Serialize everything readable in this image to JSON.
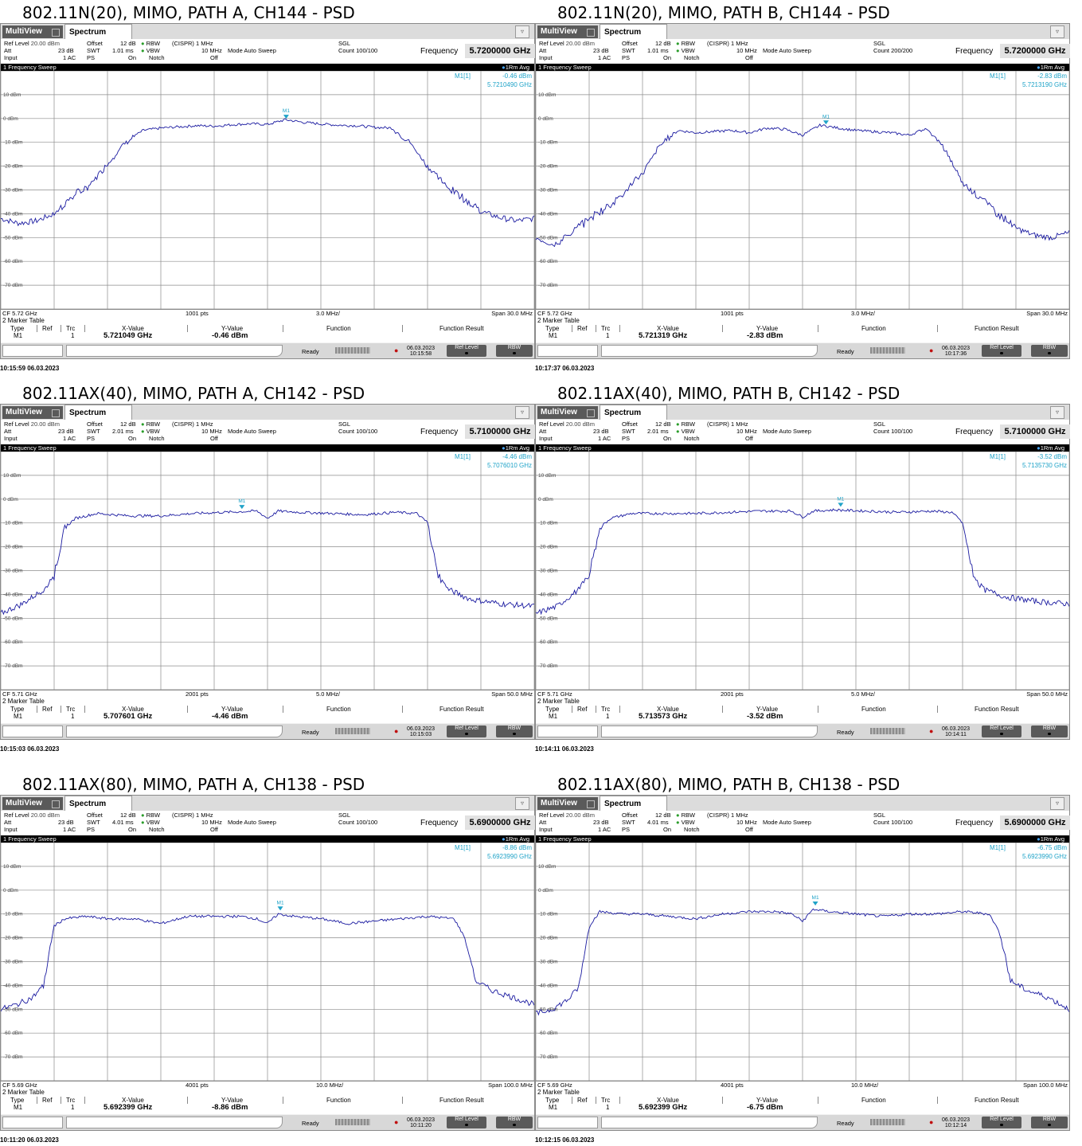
{
  "panels": [
    {
      "title": "802.11N(20), MIMO, PATH A, CH144 - PSD",
      "tabs": {
        "multiview": "MultiView",
        "spectrum": "Spectrum"
      },
      "params": {
        "ref_level": "20.00 dBm",
        "att": "23 dB",
        "input": "1 AC",
        "offset": "12 dB",
        "swt": "1.01 ms",
        "ps": "On",
        "rbw": "(CISPR) 1 MHz",
        "vbw": "10 MHz",
        "notch": "Off",
        "mode": "Mode Auto Sweep",
        "sgl": "SGL",
        "count": "Count 100/100",
        "frequency_label": "Frequency",
        "frequency": "5.7200000 GHz"
      },
      "sweep": {
        "label": "1 Frequency Sweep",
        "trace": "1Rm Avg"
      },
      "marker_readout": {
        "name": "M1[1]",
        "level": "-0.46 dBm",
        "freq": "5.7210490 GHz"
      },
      "bottom": {
        "cf": "CF 5.72 GHz",
        "pts": "1001 pts",
        "div": "3.0 MHz/",
        "span": "Span 30.0 MHz"
      },
      "marker_table": {
        "caption": "2 Marker Table",
        "headers": [
          "Type",
          "Ref",
          "Trc",
          "X-Value",
          "Y-Value",
          "Function",
          "Function Result"
        ],
        "row": {
          "type": "M1",
          "ref": "",
          "trc": "1",
          "x": "5.721049 GHz",
          "y": "-0.46 dBm"
        }
      },
      "status": {
        "ready": "Ready",
        "date": "06.03.2023",
        "time": "10:15:58",
        "btn1": "Ref Level",
        "btn2": "RBW"
      },
      "timestamp": "10:15:59  06.03.2023"
    },
    {
      "title": "802.11N(20), MIMO, PATH B, CH144 - PSD",
      "tabs": {
        "multiview": "MultiView",
        "spectrum": "Spectrum"
      },
      "params": {
        "ref_level": "20.00 dBm",
        "att": "23 dB",
        "input": "1 AC",
        "offset": "12 dB",
        "swt": "1.01 ms",
        "ps": "On",
        "rbw": "(CISPR) 1 MHz",
        "vbw": "10 MHz",
        "notch": "Off",
        "mode": "Mode Auto Sweep",
        "sgl": "SGL",
        "count": "Count 200/200",
        "frequency_label": "Frequency",
        "frequency": "5.7200000 GHz"
      },
      "sweep": {
        "label": "1 Frequency Sweep",
        "trace": "1Rm Avg"
      },
      "marker_readout": {
        "name": "M1[1]",
        "level": "-2.83 dBm",
        "freq": "5.7213190 GHz"
      },
      "bottom": {
        "cf": "CF 5.72 GHz",
        "pts": "1001 pts",
        "div": "3.0 MHz/",
        "span": "Span 30.0 MHz"
      },
      "marker_table": {
        "caption": "2 Marker Table",
        "headers": [
          "Type",
          "Ref",
          "Trc",
          "X-Value",
          "Y-Value",
          "Function",
          "Function Result"
        ],
        "row": {
          "type": "M1",
          "ref": "",
          "trc": "1",
          "x": "5.721319 GHz",
          "y": "-2.83 dBm"
        }
      },
      "status": {
        "ready": "Ready",
        "date": "06.03.2023",
        "time": "10:17:36",
        "btn1": "Ref Level",
        "btn2": "RBW"
      },
      "timestamp": "10:17:37  06.03.2023"
    },
    {
      "title": "802.11AX(40), MIMO, PATH A, CH142 - PSD",
      "tabs": {
        "multiview": "MultiView",
        "spectrum": "Spectrum"
      },
      "params": {
        "ref_level": "20.00 dBm",
        "att": "23 dB",
        "input": "1 AC",
        "offset": "12 dB",
        "swt": "2.01 ms",
        "ps": "On",
        "rbw": "(CISPR) 1 MHz",
        "vbw": "10 MHz",
        "notch": "Off",
        "mode": "Mode Auto Sweep",
        "sgl": "SGL",
        "count": "Count 100/100",
        "frequency_label": "Frequency",
        "frequency": "5.7100000 GHz"
      },
      "sweep": {
        "label": "1 Frequency Sweep",
        "trace": "1Rm Avg"
      },
      "marker_readout": {
        "name": "M1[1]",
        "level": "-4.46 dBm",
        "freq": "5.7076010 GHz"
      },
      "bottom": {
        "cf": "CF 5.71 GHz",
        "pts": "2001 pts",
        "div": "5.0 MHz/",
        "span": "Span 50.0 MHz"
      },
      "marker_table": {
        "caption": "2 Marker Table",
        "headers": [
          "Type",
          "Ref",
          "Trc",
          "X-Value",
          "Y-Value",
          "Function",
          "Function Result"
        ],
        "row": {
          "type": "M1",
          "ref": "",
          "trc": "1",
          "x": "5.707601 GHz",
          "y": "-4.46 dBm"
        }
      },
      "status": {
        "ready": "Ready",
        "date": "06.03.2023",
        "time": "10:15:03",
        "btn1": "Ref Level",
        "btn2": "RBW"
      },
      "timestamp": "10:15:03  06.03.2023"
    },
    {
      "title": "802.11AX(40), MIMO, PATH B, CH142 - PSD",
      "tabs": {
        "multiview": "MultiView",
        "spectrum": "Spectrum"
      },
      "params": {
        "ref_level": "20.00 dBm",
        "att": "23 dB",
        "input": "1 AC",
        "offset": "12 dB",
        "swt": "2.01 ms",
        "ps": "On",
        "rbw": "(CISPR) 1 MHz",
        "vbw": "10 MHz",
        "notch": "Off",
        "mode": "Mode Auto Sweep",
        "sgl": "SGL",
        "count": "Count 100/100",
        "frequency_label": "Frequency",
        "frequency": "5.7100000 GHz"
      },
      "sweep": {
        "label": "1 Frequency Sweep",
        "trace": "1Rm Avg"
      },
      "marker_readout": {
        "name": "M1[1]",
        "level": "-3.52 dBm",
        "freq": "5.7135730 GHz"
      },
      "bottom": {
        "cf": "CF 5.71 GHz",
        "pts": "2001 pts",
        "div": "5.0 MHz/",
        "span": "Span 50.0 MHz"
      },
      "marker_table": {
        "caption": "2 Marker Table",
        "headers": [
          "Type",
          "Ref",
          "Trc",
          "X-Value",
          "Y-Value",
          "Function",
          "Function Result"
        ],
        "row": {
          "type": "M1",
          "ref": "",
          "trc": "1",
          "x": "5.713573 GHz",
          "y": "-3.52 dBm"
        }
      },
      "status": {
        "ready": "Ready",
        "date": "06.03.2023",
        "time": "10:14:11",
        "btn1": "Ref Level",
        "btn2": "RBW"
      },
      "timestamp": "10:14:11  06.03.2023"
    },
    {
      "title": "802.11AX(80), MIMO, PATH A, CH138 - PSD",
      "tabs": {
        "multiview": "MultiView",
        "spectrum": "Spectrum"
      },
      "params": {
        "ref_level": "20.00 dBm",
        "att": "23 dB",
        "input": "1 AC",
        "offset": "12 dB",
        "swt": "4.01 ms",
        "ps": "On",
        "rbw": "(CISPR) 1 MHz",
        "vbw": "10 MHz",
        "notch": "Off",
        "mode": "Mode Auto Sweep",
        "sgl": "SGL",
        "count": "Count 100/100",
        "frequency_label": "Frequency",
        "frequency": "5.6900000 GHz"
      },
      "sweep": {
        "label": "1 Frequency Sweep",
        "trace": "1Rm Avg"
      },
      "marker_readout": {
        "name": "M1[1]",
        "level": "-8.86 dBm",
        "freq": "5.6923990 GHz"
      },
      "bottom": {
        "cf": "CF 5.69 GHz",
        "pts": "4001 pts",
        "div": "10.0 MHz/",
        "span": "Span 100.0 MHz"
      },
      "marker_table": {
        "caption": "2 Marker Table",
        "headers": [
          "Type",
          "Ref",
          "Trc",
          "X-Value",
          "Y-Value",
          "Function",
          "Function Result"
        ],
        "row": {
          "type": "M1",
          "ref": "",
          "trc": "1",
          "x": "5.692399 GHz",
          "y": "-8.86 dBm"
        }
      },
      "status": {
        "ready": "Ready",
        "date": "06.03.2023",
        "time": "10:11:20",
        "btn1": "Ref Level",
        "btn2": "RBW"
      },
      "timestamp": "10:11:20  06.03.2023"
    },
    {
      "title": "802.11AX(80), MIMO, PATH B, CH138 - PSD",
      "tabs": {
        "multiview": "MultiView",
        "spectrum": "Spectrum"
      },
      "params": {
        "ref_level": "20.00 dBm",
        "att": "23 dB",
        "input": "1 AC",
        "offset": "12 dB",
        "swt": "4.01 ms",
        "ps": "On",
        "rbw": "(CISPR) 1 MHz",
        "vbw": "10 MHz",
        "notch": "Off",
        "mode": "Mode Auto Sweep",
        "sgl": "SGL",
        "count": "Count 100/100",
        "frequency_label": "Frequency",
        "frequency": "5.6900000 GHz"
      },
      "sweep": {
        "label": "1 Frequency Sweep",
        "trace": "1Rm Avg"
      },
      "marker_readout": {
        "name": "M1[1]",
        "level": "-6.75 dBm",
        "freq": "5.6923990 GHz"
      },
      "bottom": {
        "cf": "CF 5.69 GHz",
        "pts": "4001 pts",
        "div": "10.0 MHz/",
        "span": "Span 100.0 MHz"
      },
      "marker_table": {
        "caption": "2 Marker Table",
        "headers": [
          "Type",
          "Ref",
          "Trc",
          "X-Value",
          "Y-Value",
          "Function",
          "Function Result"
        ],
        "row": {
          "type": "M1",
          "ref": "",
          "trc": "1",
          "x": "5.692399 GHz",
          "y": "-6.75 dBm"
        }
      },
      "status": {
        "ready": "Ready",
        "date": "06.03.2023",
        "time": "10:12:14",
        "btn1": "Ref Level",
        "btn2": "RBW"
      },
      "timestamp": "10:12:15  06.03.2023"
    }
  ],
  "colors": {
    "trace": "#1a1aa0",
    "marker": "#1fa3c8",
    "grid": "#8c8c8c",
    "readout": "#1fa3c8"
  },
  "chart_data": [
    {
      "type": "line",
      "ylabel": "dBm",
      "ylim": [
        -80,
        20
      ],
      "yticks": [
        "10 dBm",
        "0 dBm",
        "-10 dBm",
        "-20 dBm",
        "-30 dBm",
        "-40 dBm",
        "-50 dBm",
        "-60 dBm",
        "-70 dBm"
      ],
      "xlim_mhz": [
        5705,
        5735
      ],
      "series": [
        {
          "x": [
            5705,
            5706,
            5707,
            5708,
            5709,
            5710,
            5711,
            5712,
            5713,
            5714,
            5715,
            5716,
            5717,
            5718,
            5719,
            5720,
            5721,
            5722,
            5723,
            5724,
            5725,
            5726,
            5727,
            5728,
            5729,
            5730,
            5731,
            5732,
            5733,
            5734,
            5735
          ],
          "values": [
            -42,
            -44,
            -43,
            -40,
            -33,
            -28,
            -19,
            -10,
            -5,
            -4,
            -3.5,
            -3,
            -3.2,
            -2.6,
            -2.2,
            -2.5,
            -0.5,
            -1.6,
            -2.3,
            -2.8,
            -3,
            -3.7,
            -4,
            -10,
            -20,
            -28,
            -33,
            -39,
            -41.5,
            -43,
            -42
          ]
        }
      ],
      "marker": {
        "name": "M1",
        "x": 5721.049,
        "y": -0.46
      }
    },
    {
      "type": "line",
      "ylabel": "dBm",
      "ylim": [
        -80,
        20
      ],
      "yticks": [
        "10 dBm",
        "0 dBm",
        "-10 dBm",
        "-20 dBm",
        "-30 dBm",
        "-40 dBm",
        "-50 dBm",
        "-60 dBm",
        "-70 dBm"
      ],
      "xlim_mhz": [
        5705,
        5735
      ],
      "series": [
        {
          "x": [
            5705,
            5706,
            5707,
            5708,
            5709,
            5710,
            5711,
            5712,
            5713,
            5714,
            5715,
            5716,
            5717,
            5718,
            5719,
            5720,
            5721,
            5722,
            5723,
            5724,
            5725,
            5726,
            5727,
            5728,
            5729,
            5730,
            5731,
            5732,
            5733,
            5734,
            5735
          ],
          "values": [
            -50,
            -53,
            -48,
            -42,
            -37,
            -31,
            -23,
            -11,
            -5,
            -6,
            -5.5,
            -5,
            -6,
            -4,
            -4.5,
            -7,
            -2.8,
            -4,
            -5,
            -5.5,
            -6,
            -7,
            -4,
            -13,
            -27,
            -33,
            -40,
            -46,
            -49,
            -50,
            -48
          ]
        }
      ],
      "marker": {
        "name": "M1",
        "x": 5721.319,
        "y": -2.83
      }
    },
    {
      "type": "line",
      "ylabel": "dBm",
      "ylim": [
        -80,
        20
      ],
      "yticks": [
        "10 dBm",
        "0 dBm",
        "-10 dBm",
        "-20 dBm",
        "-30 dBm",
        "-40 dBm",
        "-50 dBm",
        "-60 dBm",
        "-70 dBm"
      ],
      "xlim_mhz": [
        5685,
        5735
      ],
      "series": [
        {
          "x": [
            5685,
            5687,
            5689,
            5690,
            5691,
            5692,
            5694,
            5697,
            5700,
            5703,
            5706,
            5709,
            5710,
            5711,
            5713,
            5716,
            5719,
            5722,
            5724,
            5725,
            5726,
            5727,
            5729,
            5732,
            5735
          ],
          "values": [
            -48,
            -44,
            -38,
            -32,
            -12,
            -8,
            -6,
            -7,
            -7,
            -6,
            -5.5,
            -5,
            -8,
            -5,
            -5.5,
            -6,
            -6.5,
            -5.5,
            -6,
            -10,
            -32,
            -38,
            -42,
            -44,
            -45
          ]
        }
      ],
      "marker": {
        "name": "M1",
        "x": 5707.601,
        "y": -4.46
      }
    },
    {
      "type": "line",
      "ylabel": "dBm",
      "ylim": [
        -80,
        20
      ],
      "yticks": [
        "10 dBm",
        "0 dBm",
        "-10 dBm",
        "-20 dBm",
        "-30 dBm",
        "-40 dBm",
        "-50 dBm",
        "-60 dBm",
        "-70 dBm"
      ],
      "xlim_mhz": [
        5685,
        5735
      ],
      "series": [
        {
          "x": [
            5685,
            5687,
            5689,
            5690,
            5691,
            5692,
            5694,
            5697,
            5700,
            5703,
            5706,
            5709,
            5710,
            5711,
            5713,
            5716,
            5719,
            5722,
            5724,
            5725,
            5726,
            5727,
            5729,
            5732,
            5735
          ],
          "values": [
            -48,
            -45,
            -38,
            -32,
            -12,
            -8,
            -6,
            -6,
            -6,
            -5.5,
            -5,
            -5,
            -7.5,
            -5,
            -4.5,
            -5,
            -5.5,
            -5,
            -5.5,
            -10,
            -32,
            -38,
            -41,
            -43,
            -44
          ]
        }
      ],
      "marker": {
        "name": "M1",
        "x": 5713.573,
        "y": -3.52
      }
    },
    {
      "type": "line",
      "ylabel": "dBm",
      "ylim": [
        -80,
        20
      ],
      "yticks": [
        "10 dBm",
        "0 dBm",
        "-10 dBm",
        "-20 dBm",
        "-30 dBm",
        "-40 dBm",
        "-50 dBm",
        "-60 dBm",
        "-70 dBm"
      ],
      "xlim_mhz": [
        5640,
        5740
      ],
      "series": [
        {
          "x": [
            5640,
            5643,
            5646,
            5648,
            5650,
            5652,
            5656,
            5660,
            5665,
            5670,
            5675,
            5680,
            5685,
            5688,
            5690,
            5692,
            5695,
            5700,
            5705,
            5710,
            5715,
            5720,
            5725,
            5727,
            5729,
            5732,
            5736,
            5740
          ],
          "values": [
            -50,
            -48,
            -45,
            -40,
            -15,
            -12,
            -11,
            -12,
            -12,
            -14,
            -11,
            -11,
            -11,
            -12,
            -14,
            -10,
            -11,
            -12,
            -14,
            -13,
            -12,
            -11,
            -12,
            -20,
            -38,
            -42,
            -45,
            -48
          ]
        }
      ],
      "marker": {
        "name": "M1",
        "x": 5692.399,
        "y": -8.86
      }
    },
    {
      "type": "line",
      "ylabel": "dBm",
      "ylim": [
        -80,
        20
      ],
      "yticks": [
        "10 dBm",
        "0 dBm",
        "-10 dBm",
        "-20 dBm",
        "-30 dBm",
        "-40 dBm",
        "-50 dBm",
        "-60 dBm",
        "-70 dBm"
      ],
      "xlim_mhz": [
        5640,
        5740
      ],
      "series": [
        {
          "x": [
            5640,
            5643,
            5646,
            5648,
            5650,
            5652,
            5656,
            5660,
            5665,
            5670,
            5675,
            5680,
            5685,
            5688,
            5690,
            5692,
            5695,
            5700,
            5705,
            5710,
            5715,
            5720,
            5725,
            5727,
            5729,
            5732,
            5736,
            5740
          ],
          "values": [
            -52,
            -50,
            -46,
            -41,
            -15,
            -9,
            -10,
            -10,
            -11,
            -12,
            -10,
            -9,
            -9,
            -10,
            -13,
            -8,
            -9,
            -10,
            -11,
            -10,
            -10,
            -9,
            -10,
            -18,
            -38,
            -42,
            -45,
            -50
          ]
        }
      ],
      "marker": {
        "name": "M1",
        "x": 5692.399,
        "y": -6.75
      }
    }
  ]
}
